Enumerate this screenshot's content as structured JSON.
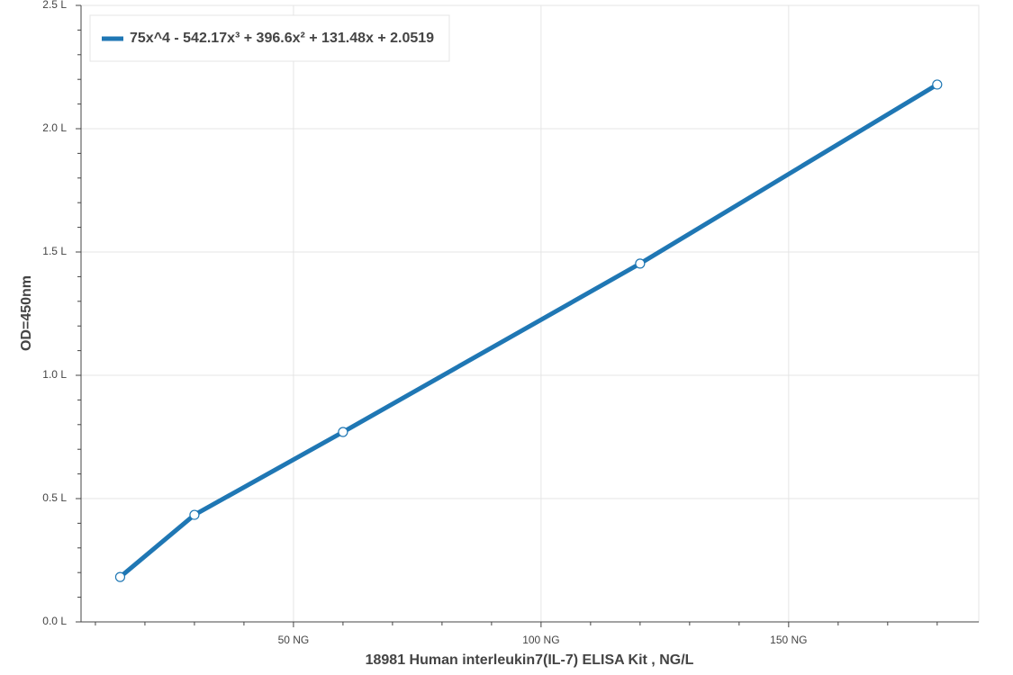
{
  "chart_data": {
    "type": "line",
    "x_label": "18981 Human interleukin7(IL-7) ELISA Kit , NG/L",
    "y_label": "OD=450nm",
    "x": [
      15,
      30,
      60,
      120,
      180
    ],
    "series": [
      {
        "name": "75x^4 - 542.17x³ + 396.6x² + 131.48x + 2.0519",
        "color": "#1f77b4",
        "values": [
          0.182,
          0.434,
          0.77,
          1.453,
          2.179
        ]
      }
    ],
    "xlim": [
      7.1,
      188.4
    ],
    "ylim": [
      0,
      2.5
    ],
    "xticks": [
      {
        "value": 50,
        "label": "50 NG"
      },
      {
        "value": 100,
        "label": "100 NG"
      },
      {
        "value": 150,
        "label": "150 NG"
      }
    ],
    "yticks": [
      {
        "value": 0,
        "label": "0.0 L"
      },
      {
        "value": 0.5,
        "label": "0.5 L"
      },
      {
        "value": 1,
        "label": "1.0 L"
      },
      {
        "value": 1.5,
        "label": "1.5 L"
      },
      {
        "value": 2,
        "label": "2.0 L"
      },
      {
        "value": 2.5,
        "label": "2.5 L"
      }
    ],
    "xminorticks": [
      10,
      20,
      30,
      40,
      60,
      70,
      80,
      90,
      110,
      120,
      130,
      140,
      160,
      170,
      180
    ],
    "yminorticks": [
      0.1,
      0.2,
      0.3,
      0.4,
      0.6,
      0.7,
      0.8,
      0.9,
      1.1,
      1.2,
      1.3,
      1.4,
      1.6,
      1.7,
      1.8,
      1.9,
      2.1,
      2.2,
      2.3,
      2.4
    ],
    "grid": true,
    "legend": "upper left"
  }
}
